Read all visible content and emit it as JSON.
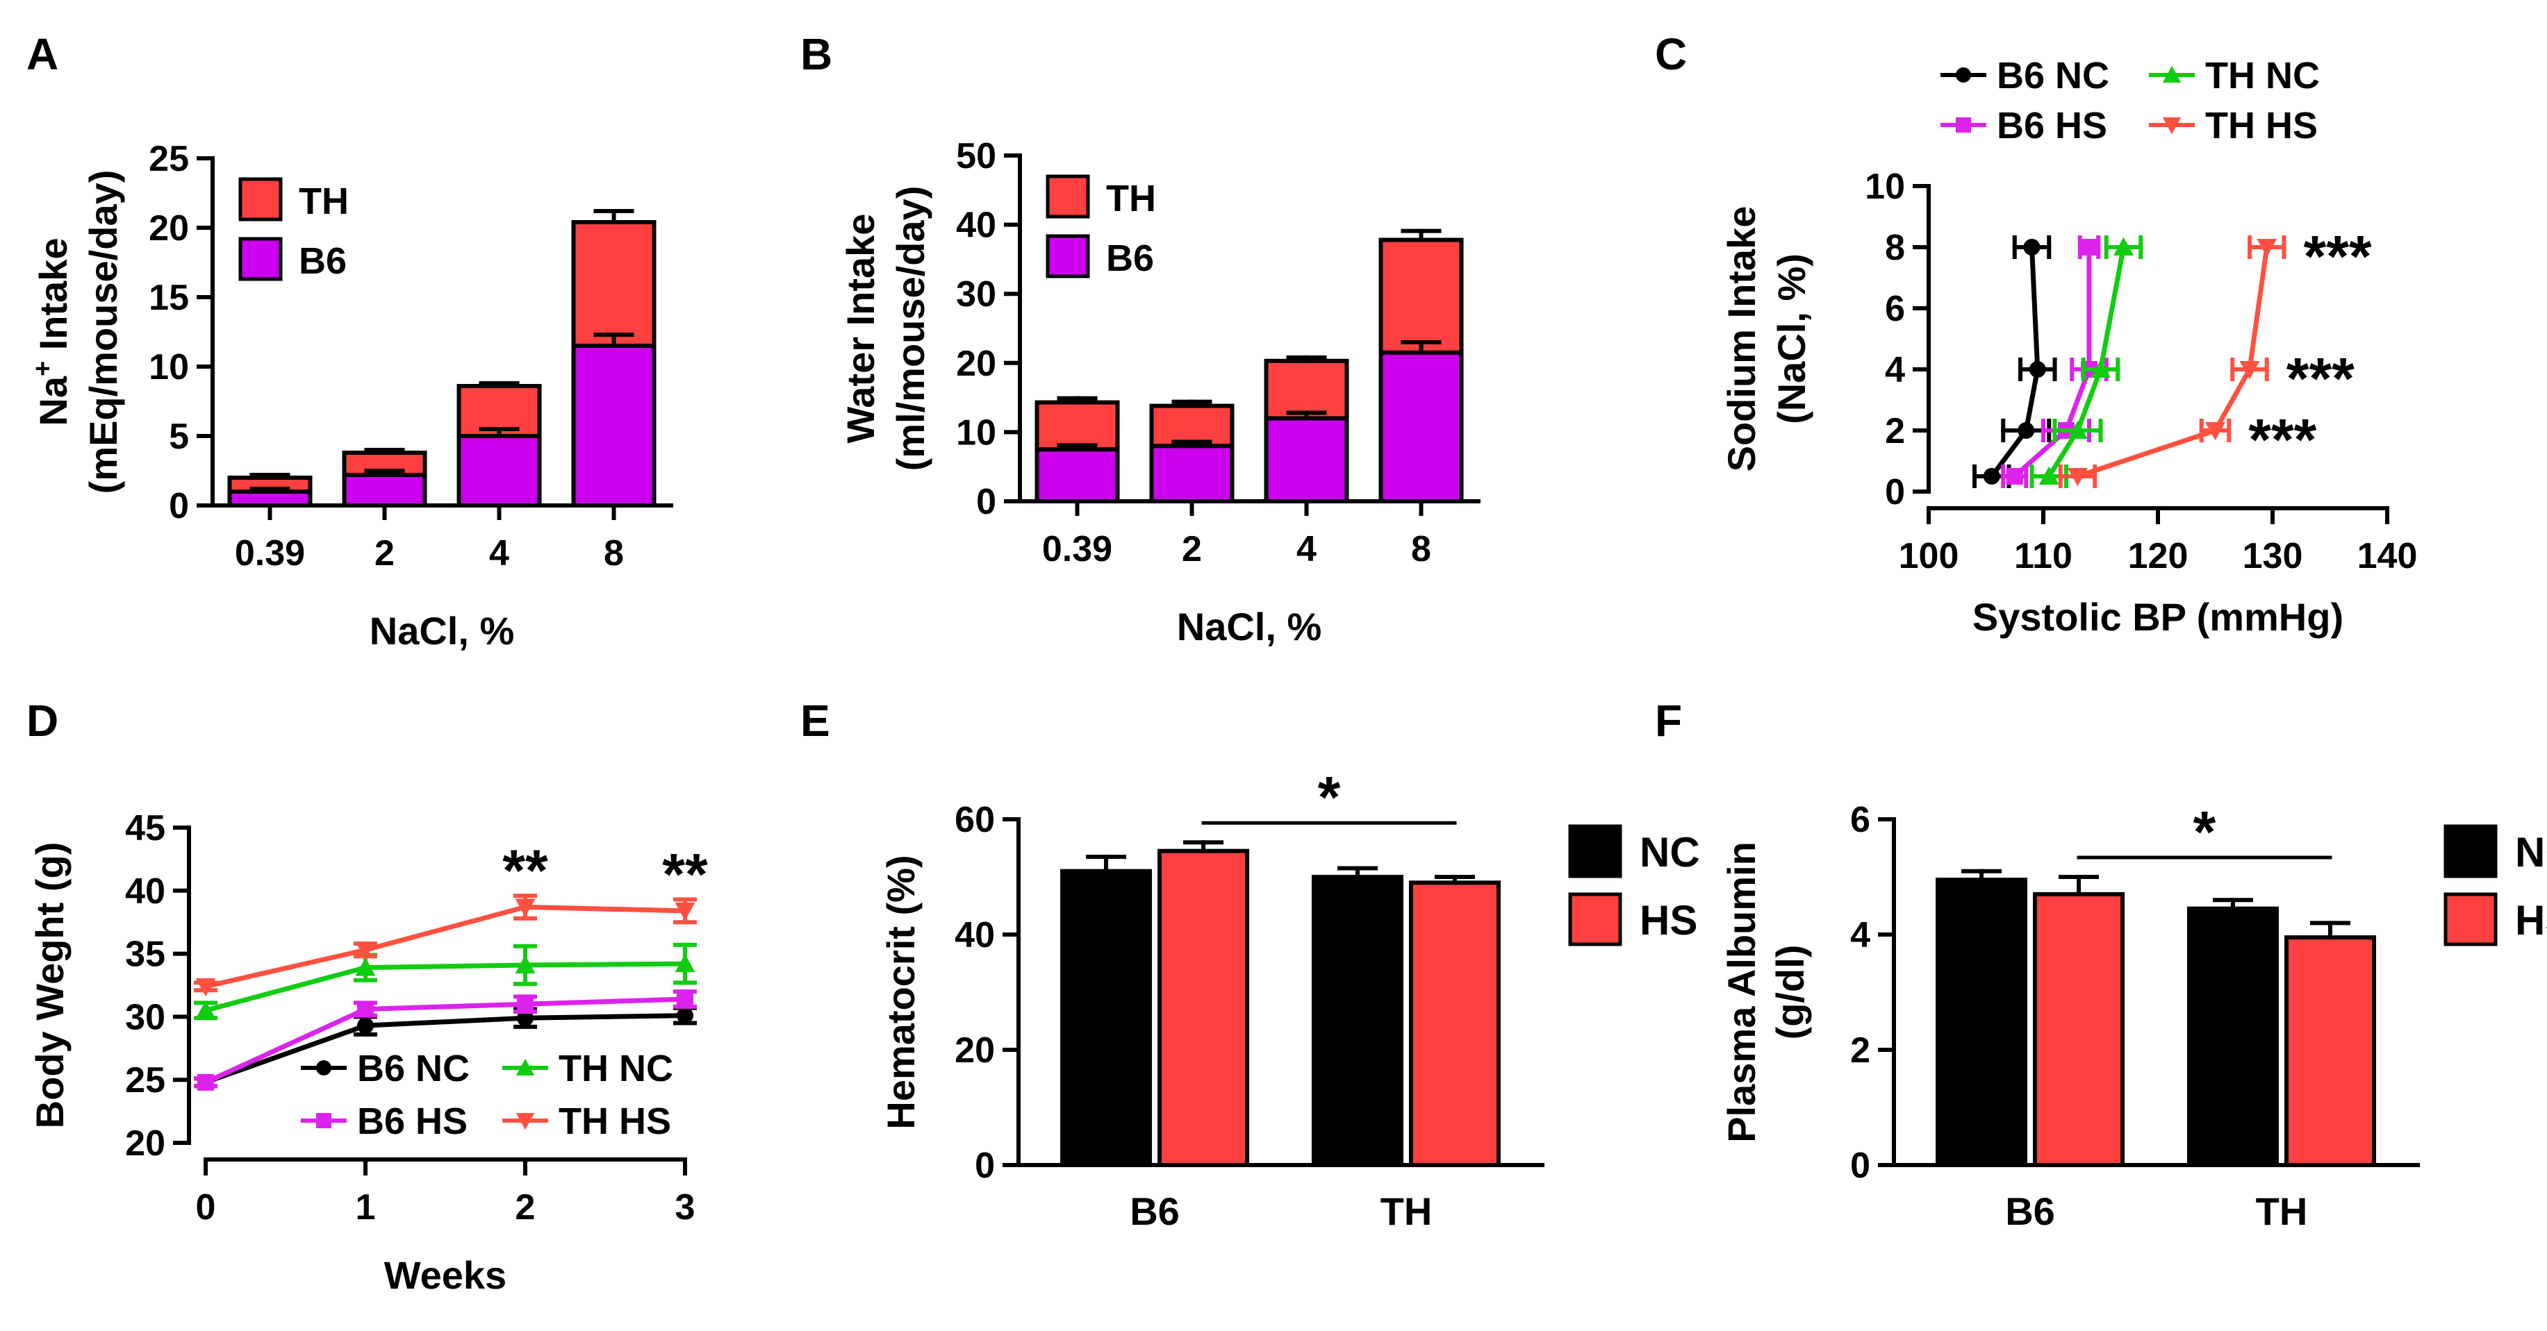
{
  "colors": {
    "b6": "#cc00ee",
    "th": "#ff4040",
    "nc_bar": "#000000",
    "hs_bar": "#ff4040",
    "b6_nc_line": "#000000",
    "b6_hs_line": "#dd22ee",
    "th_nc_line": "#11cc11",
    "th_hs_line": "#ff5040"
  },
  "chart_data": [
    {
      "panel": "A",
      "type": "bar",
      "stacked": true,
      "categories": [
        "0.39",
        "2",
        "4",
        "8"
      ],
      "series": [
        {
          "name": "B6",
          "values": [
            1.0,
            2.2,
            5.0,
            11.5
          ],
          "errors": [
            0.2,
            0.3,
            0.5,
            0.8
          ]
        },
        {
          "name": "TH",
          "values": [
            1.0,
            1.6,
            3.6,
            8.9
          ],
          "errors": [
            0.2,
            0.2,
            0.2,
            0.8
          ]
        }
      ],
      "ylabel_line1": "Na",
      "ylabel_sup": "+",
      "ylabel_line1_rest": " Intake",
      "ylabel_line2": "(mEq/mouse/day)",
      "xlabel": "NaCl, %",
      "ylim": [
        0,
        25
      ],
      "yticks": [
        "0",
        "5",
        "10",
        "15",
        "20",
        "25"
      ],
      "legend": [
        "TH",
        "B6"
      ]
    },
    {
      "panel": "B",
      "type": "bar",
      "stacked": true,
      "categories": [
        "0.39",
        "2",
        "4",
        "8"
      ],
      "series": [
        {
          "name": "B6",
          "values": [
            7.5,
            8.0,
            12.0,
            21.5
          ],
          "errors": [
            0.6,
            0.6,
            0.8,
            1.5
          ]
        },
        {
          "name": "TH",
          "values": [
            6.8,
            5.8,
            8.3,
            16.3
          ],
          "errors": [
            0.6,
            0.6,
            0.5,
            1.3
          ]
        }
      ],
      "ylabel_line1": "Water Intake",
      "ylabel_line2": "(ml/mouse/day)",
      "xlabel": "NaCl, %",
      "ylim": [
        0,
        50
      ],
      "yticks": [
        "0",
        "10",
        "20",
        "30",
        "40",
        "50"
      ],
      "legend": [
        "TH",
        "B6"
      ]
    },
    {
      "panel": "C",
      "type": "line",
      "y": [
        0.5,
        2,
        4,
        8
      ],
      "series": [
        {
          "name": "B6 NC",
          "x": [
            105.5,
            108.5,
            109.5,
            109.0
          ],
          "xerr": [
            1.5,
            2.0,
            1.5,
            1.5
          ]
        },
        {
          "name": "B6 HS",
          "x": [
            107.5,
            112.0,
            114.0,
            114.0
          ],
          "xerr": [
            1.0,
            2.0,
            1.5,
            0.8
          ]
        },
        {
          "name": "TH NC",
          "x": [
            110.5,
            113.0,
            115.0,
            117.0
          ],
          "xerr": [
            1.5,
            2.0,
            1.5,
            1.5
          ]
        },
        {
          "name": "TH HS",
          "x": [
            113.0,
            125.0,
            128.0,
            129.5
          ],
          "xerr": [
            1.5,
            1.2,
            1.5,
            1.5
          ]
        }
      ],
      "annotations": [
        "***",
        "***",
        "***"
      ],
      "ylabel_line1": "Sodium Intake",
      "ylabel_line2": "(NaCl, %)",
      "xlabel": "Systolic BP (mmHg)",
      "xlim": [
        100,
        140
      ],
      "xticks": [
        "100",
        "110",
        "120",
        "130",
        "140"
      ],
      "ylim": [
        0,
        10
      ],
      "yticks": [
        "0",
        "2",
        "4",
        "6",
        "8",
        "10"
      ]
    },
    {
      "panel": "D",
      "type": "line",
      "x": [
        0,
        1,
        2,
        3
      ],
      "series": [
        {
          "name": "B6 NC",
          "values": [
            24.8,
            29.3,
            29.9,
            30.1
          ],
          "errors": [
            0.3,
            0.7,
            0.7,
            0.6
          ]
        },
        {
          "name": "B6 HS",
          "values": [
            24.8,
            30.6,
            31.0,
            31.4
          ],
          "errors": [
            0.3,
            0.5,
            0.6,
            0.6
          ]
        },
        {
          "name": "TH NC",
          "values": [
            30.5,
            33.9,
            34.1,
            34.2
          ],
          "errors": [
            0.6,
            1.0,
            1.5,
            1.5
          ]
        },
        {
          "name": "TH HS",
          "values": [
            32.4,
            35.3,
            38.7,
            38.4
          ],
          "errors": [
            0.3,
            0.5,
            0.9,
            0.9
          ]
        }
      ],
      "annotations": [
        "**",
        "**"
      ],
      "ylabel": "Body Weght (g)",
      "xlabel": "Weeks",
      "ylim": [
        20,
        45
      ],
      "yticks": [
        "20",
        "25",
        "30",
        "35",
        "40",
        "45"
      ],
      "xticks": [
        "0",
        "1",
        "2",
        "3"
      ]
    },
    {
      "panel": "E",
      "type": "bar",
      "categories": [
        "B6",
        "TH"
      ],
      "series": [
        {
          "name": "NC",
          "values": [
            51.0,
            50.0
          ],
          "errors": [
            2.5,
            1.5
          ]
        },
        {
          "name": "HS",
          "values": [
            54.5,
            49.0
          ],
          "errors": [
            1.5,
            1.0
          ]
        }
      ],
      "significance": "*",
      "ylabel": "Hematocrit (%)",
      "ylim": [
        0,
        60
      ],
      "yticks": [
        "0",
        "20",
        "40",
        "60"
      ],
      "legend": [
        "NC",
        "HS"
      ]
    },
    {
      "panel": "F",
      "type": "bar",
      "categories": [
        "B6",
        "TH"
      ],
      "series": [
        {
          "name": "NC",
          "values": [
            4.95,
            4.45
          ],
          "errors": [
            0.15,
            0.15
          ]
        },
        {
          "name": "HS",
          "values": [
            4.7,
            3.95
          ],
          "errors": [
            0.3,
            0.25
          ]
        }
      ],
      "significance": "*",
      "ylabel_line1": "Plasma Albumin",
      "ylabel_line2": "(g/dl)",
      "ylim": [
        0,
        6
      ],
      "yticks": [
        "0",
        "2",
        "4",
        "6"
      ],
      "legend": [
        "NC",
        "HS"
      ]
    }
  ]
}
